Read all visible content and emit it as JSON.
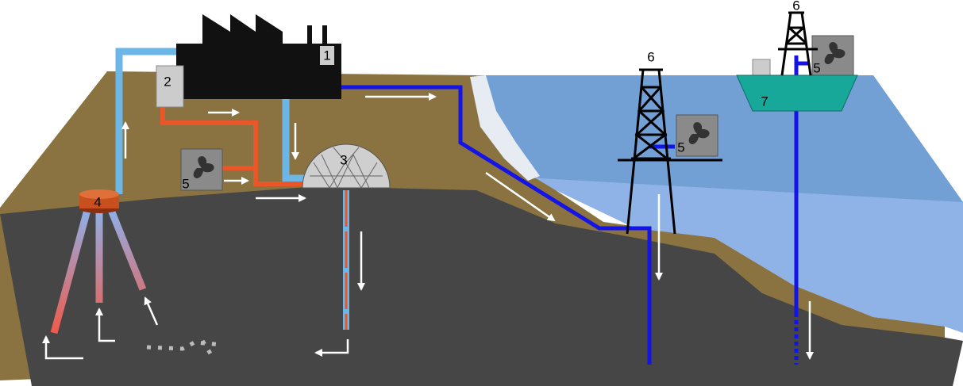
{
  "nodes": [
    {
      "id": "factory",
      "label": "1"
    },
    {
      "id": "separator",
      "label": "2"
    },
    {
      "id": "storage-dome",
      "label": "3"
    },
    {
      "id": "wellhead",
      "label": "4"
    },
    {
      "id": "compressor-land",
      "label": "5"
    },
    {
      "id": "compressor-rig",
      "label": "5"
    },
    {
      "id": "compressor-platform",
      "label": "5"
    },
    {
      "id": "offshore-rig",
      "label": "6"
    },
    {
      "id": "platform-rig",
      "label": "6"
    },
    {
      "id": "floating-platform",
      "label": "7"
    }
  ]
}
